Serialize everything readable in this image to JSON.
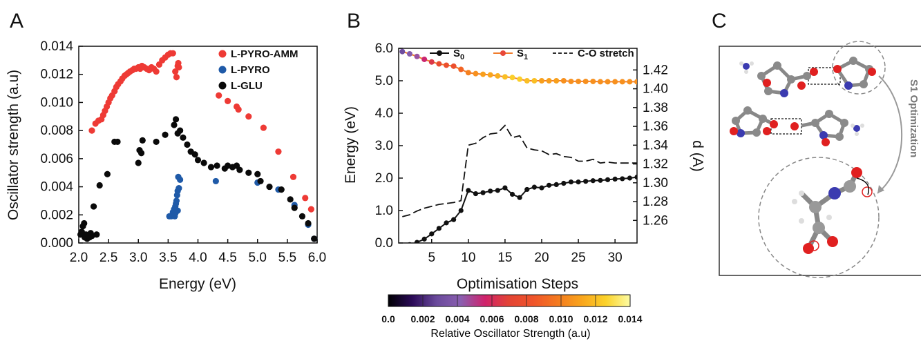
{
  "panels": {
    "a": "A",
    "b": "B",
    "c": "C"
  },
  "colorbar": {
    "label": "Relative Oscillator Strength (a.u)",
    "ticks": [
      "0.0",
      "0.002",
      "0.004",
      "0.006",
      "0.008",
      "0.010",
      "0.012",
      "0.014"
    ],
    "colors": [
      "#000004",
      "#2b0a58",
      "#6a4a9c",
      "#8a5fb0",
      "#d0226b",
      "#e34434",
      "#f0542a",
      "#f47a1f",
      "#f9a51c",
      "#fbd22a",
      "#fcfca4"
    ]
  },
  "molecule": {
    "rotated_label": "S1 Optimization"
  },
  "chart_data": [
    {
      "type": "scatter",
      "xlabel": "Energy (eV)",
      "ylabel": "Oscillator strength (a.u)",
      "xlim": [
        2.0,
        6.0
      ],
      "ylim": [
        0.0,
        0.014
      ],
      "xticks": [
        "2.0",
        "2.5",
        "3.0",
        "3.5",
        "4.0",
        "4.5",
        "5.0",
        "5.5",
        "6.0"
      ],
      "yticks": [
        "0.000",
        "0.002",
        "0.004",
        "0.006",
        "0.008",
        "0.010",
        "0.012",
        "0.014"
      ],
      "legend_position": "top-right",
      "series": [
        {
          "name": "L-PYRO-AMM",
          "color": "#ee3a35",
          "points": [
            [
              2.22,
              0.008
            ],
            [
              2.28,
              0.0085
            ],
            [
              2.33,
              0.0087
            ],
            [
              2.38,
              0.0088
            ],
            [
              2.41,
              0.0091
            ],
            [
              2.44,
              0.0094
            ],
            [
              2.47,
              0.0097
            ],
            [
              2.5,
              0.01
            ],
            [
              2.53,
              0.0103
            ],
            [
              2.56,
              0.0105
            ],
            [
              2.6,
              0.0108
            ],
            [
              2.63,
              0.0111
            ],
            [
              2.66,
              0.0113
            ],
            [
              2.7,
              0.0115
            ],
            [
              2.73,
              0.0117
            ],
            [
              2.77,
              0.0119
            ],
            [
              2.8,
              0.012
            ],
            [
              2.83,
              0.0121
            ],
            [
              2.86,
              0.0122
            ],
            [
              2.9,
              0.0123
            ],
            [
              2.93,
              0.0124
            ],
            [
              2.96,
              0.0124
            ],
            [
              3.0,
              0.0125
            ],
            [
              3.03,
              0.0124
            ],
            [
              3.06,
              0.0126
            ],
            [
              3.1,
              0.0125
            ],
            [
              3.14,
              0.0124
            ],
            [
              3.18,
              0.0123
            ],
            [
              3.22,
              0.0125
            ],
            [
              3.26,
              0.0124
            ],
            [
              3.3,
              0.0122
            ],
            [
              3.35,
              0.0127
            ],
            [
              3.4,
              0.013
            ],
            [
              3.45,
              0.0132
            ],
            [
              3.5,
              0.0134
            ],
            [
              3.54,
              0.0135
            ],
            [
              3.58,
              0.0135
            ],
            [
              3.62,
              0.0122
            ],
            [
              3.64,
              0.0118
            ],
            [
              3.66,
              0.0126
            ],
            [
              3.67,
              0.0128
            ],
            [
              3.68,
              0.0125
            ],
            [
              4.35,
              0.0105
            ],
            [
              4.5,
              0.0101
            ],
            [
              4.65,
              0.0097
            ],
            [
              4.68,
              0.0095
            ],
            [
              4.85,
              0.009
            ],
            [
              5.1,
              0.0082
            ],
            [
              5.35,
              0.0065
            ],
            [
              5.6,
              0.0047
            ],
            [
              5.8,
              0.0032
            ],
            [
              5.9,
              0.0024
            ]
          ]
        },
        {
          "name": "L-PYRO",
          "color": "#1f5aa8",
          "points": [
            [
              3.52,
              0.0019
            ],
            [
              3.55,
              0.0019
            ],
            [
              3.57,
              0.002
            ],
            [
              3.58,
              0.0022
            ],
            [
              3.6,
              0.0024
            ],
            [
              3.61,
              0.0019
            ],
            [
              3.62,
              0.0026
            ],
            [
              3.63,
              0.0028
            ],
            [
              3.64,
              0.003
            ],
            [
              3.65,
              0.0034
            ],
            [
              3.66,
              0.0037
            ],
            [
              3.67,
              0.0047
            ],
            [
              3.68,
              0.0039
            ],
            [
              3.7,
              0.0045
            ],
            [
              3.62,
              0.0021
            ],
            [
              3.66,
              0.0023
            ],
            [
              4.3,
              0.0044
            ],
            [
              5.0,
              0.0043
            ],
            [
              5.35,
              0.0038
            ],
            [
              5.62,
              0.0027
            ],
            [
              5.85,
              0.0013
            ],
            [
              5.95,
              0.0003
            ]
          ]
        },
        {
          "name": "L-GLU",
          "color": "#0a0a0a",
          "points": [
            [
              2.03,
              0.0006
            ],
            [
              2.05,
              0.0008
            ],
            [
              2.07,
              0.0012
            ],
            [
              2.09,
              0.0014
            ],
            [
              2.1,
              0.0004
            ],
            [
              2.12,
              0.0006
            ],
            [
              2.14,
              0.0003
            ],
            [
              2.16,
              0.0005
            ],
            [
              2.18,
              0.0004
            ],
            [
              2.2,
              0.0007
            ],
            [
              2.22,
              0.0005
            ],
            [
              2.25,
              0.0026
            ],
            [
              2.3,
              0.0006
            ],
            [
              2.35,
              0.0041
            ],
            [
              2.48,
              0.0049
            ],
            [
              2.6,
              0.0072
            ],
            [
              2.65,
              0.0072
            ],
            [
              3.0,
              0.0057
            ],
            [
              3.02,
              0.0066
            ],
            [
              3.05,
              0.0064
            ],
            [
              3.07,
              0.0073
            ],
            [
              3.3,
              0.0072
            ],
            [
              3.45,
              0.0077
            ],
            [
              3.6,
              0.0084
            ],
            [
              3.63,
              0.0088
            ],
            [
              3.66,
              0.0078
            ],
            [
              3.7,
              0.008
            ],
            [
              3.75,
              0.0075
            ],
            [
              3.82,
              0.007
            ],
            [
              3.88,
              0.0065
            ],
            [
              3.95,
              0.0063
            ],
            [
              4.0,
              0.0059
            ],
            [
              4.1,
              0.0057
            ],
            [
              4.22,
              0.0054
            ],
            [
              4.32,
              0.0055
            ],
            [
              4.45,
              0.0053
            ],
            [
              4.5,
              0.0055
            ],
            [
              4.58,
              0.0054
            ],
            [
              4.65,
              0.0055
            ],
            [
              4.7,
              0.0052
            ],
            [
              4.85,
              0.005
            ],
            [
              5.0,
              0.0049
            ],
            [
              5.05,
              0.0044
            ],
            [
              5.2,
              0.004
            ],
            [
              5.4,
              0.0038
            ],
            [
              5.55,
              0.0031
            ],
            [
              5.62,
              0.0025
            ],
            [
              5.75,
              0.0019
            ],
            [
              5.85,
              0.0014
            ],
            [
              5.95,
              0.0003
            ]
          ]
        }
      ]
    },
    {
      "type": "line",
      "xlabel": "Optimisation Steps",
      "ylabel": "Energy (eV)",
      "y2label": "d (A)",
      "xlim": [
        0.5,
        33
      ],
      "ylim": [
        0.0,
        6.0
      ],
      "y2lim": [
        1.236,
        1.443
      ],
      "xticks": [
        "5",
        "10",
        "15",
        "20",
        "25",
        "30"
      ],
      "yticks": [
        "0.0",
        "1.0",
        "2.0",
        "3.0",
        "4.0",
        "5.0",
        "6.0"
      ],
      "y2ticks": [
        "1.26",
        "1.28",
        "1.30",
        "1.32",
        "1.34",
        "1.36",
        "1.38",
        "1.40",
        "1.42"
      ],
      "legend_position": "top",
      "series": [
        {
          "name": "S0",
          "legend_main": "S",
          "legend_sub": "0",
          "color": "#111111",
          "axis": "left",
          "style": "line-marker",
          "x": [
            1,
            2,
            3,
            4,
            5,
            6,
            7,
            8,
            9,
            10,
            11,
            12,
            13,
            14,
            15,
            16,
            17,
            18,
            19,
            20,
            21,
            22,
            23,
            24,
            25,
            26,
            27,
            28,
            29,
            30,
            31,
            32,
            33
          ],
          "y": [
            -0.15,
            -0.05,
            0.02,
            0.12,
            0.28,
            0.45,
            0.62,
            0.72,
            1.0,
            1.62,
            1.52,
            1.55,
            1.6,
            1.62,
            1.7,
            1.5,
            1.4,
            1.65,
            1.72,
            1.7,
            1.78,
            1.8,
            1.84,
            1.88,
            1.88,
            1.9,
            1.92,
            1.93,
            1.95,
            1.97,
            1.98,
            2.0,
            2.03
          ]
        },
        {
          "name": "S1",
          "legend_main": "S",
          "legend_sub": "1",
          "color": "#f07c2c",
          "axis": "left",
          "style": "line-marker-colored",
          "x": [
            1,
            2,
            3,
            4,
            5,
            6,
            7,
            8,
            9,
            10,
            11,
            12,
            13,
            14,
            15,
            16,
            17,
            18,
            19,
            20,
            21,
            22,
            23,
            24,
            25,
            26,
            27,
            28,
            29,
            30,
            31,
            32,
            33
          ],
          "y": [
            5.9,
            5.83,
            5.75,
            5.66,
            5.58,
            5.52,
            5.48,
            5.45,
            5.35,
            5.25,
            5.22,
            5.2,
            5.18,
            5.15,
            5.12,
            5.1,
            5.05,
            5.0,
            5.0,
            5.0,
            5.0,
            5.0,
            5.0,
            4.98,
            4.98,
            4.98,
            4.98,
            4.97,
            4.97,
            4.97,
            4.97,
            4.97,
            4.97
          ],
          "strength": [
            0.003,
            0.004,
            0.0045,
            0.0055,
            0.0065,
            0.0075,
            0.008,
            0.008,
            0.009,
            0.01,
            0.0105,
            0.011,
            0.0112,
            0.0115,
            0.012,
            0.0125,
            0.0125,
            0.012,
            0.012,
            0.011,
            0.011,
            0.011,
            0.0105,
            0.0105,
            0.0105,
            0.0105,
            0.0105,
            0.0105,
            0.0105,
            0.0105,
            0.0105,
            0.0105,
            0.0105
          ]
        },
        {
          "name": "C-O stretch",
          "color": "#111111",
          "axis": "right",
          "style": "dashed",
          "x": [
            1,
            2,
            3,
            4,
            5,
            6,
            7,
            8,
            9,
            10,
            11,
            12,
            13,
            14,
            15,
            16,
            17,
            18,
            19,
            20,
            21,
            22,
            23,
            24,
            25,
            26,
            27,
            28,
            29,
            30,
            31,
            32,
            33
          ],
          "y": [
            1.264,
            1.266,
            1.27,
            1.273,
            1.275,
            1.277,
            1.278,
            1.279,
            1.281,
            1.34,
            1.342,
            1.348,
            1.352,
            1.353,
            1.361,
            1.348,
            1.35,
            1.337,
            1.335,
            1.334,
            1.33,
            1.331,
            1.328,
            1.327,
            1.323,
            1.323,
            1.325,
            1.321,
            1.322,
            1.321,
            1.321,
            1.321,
            1.321
          ]
        }
      ]
    }
  ]
}
